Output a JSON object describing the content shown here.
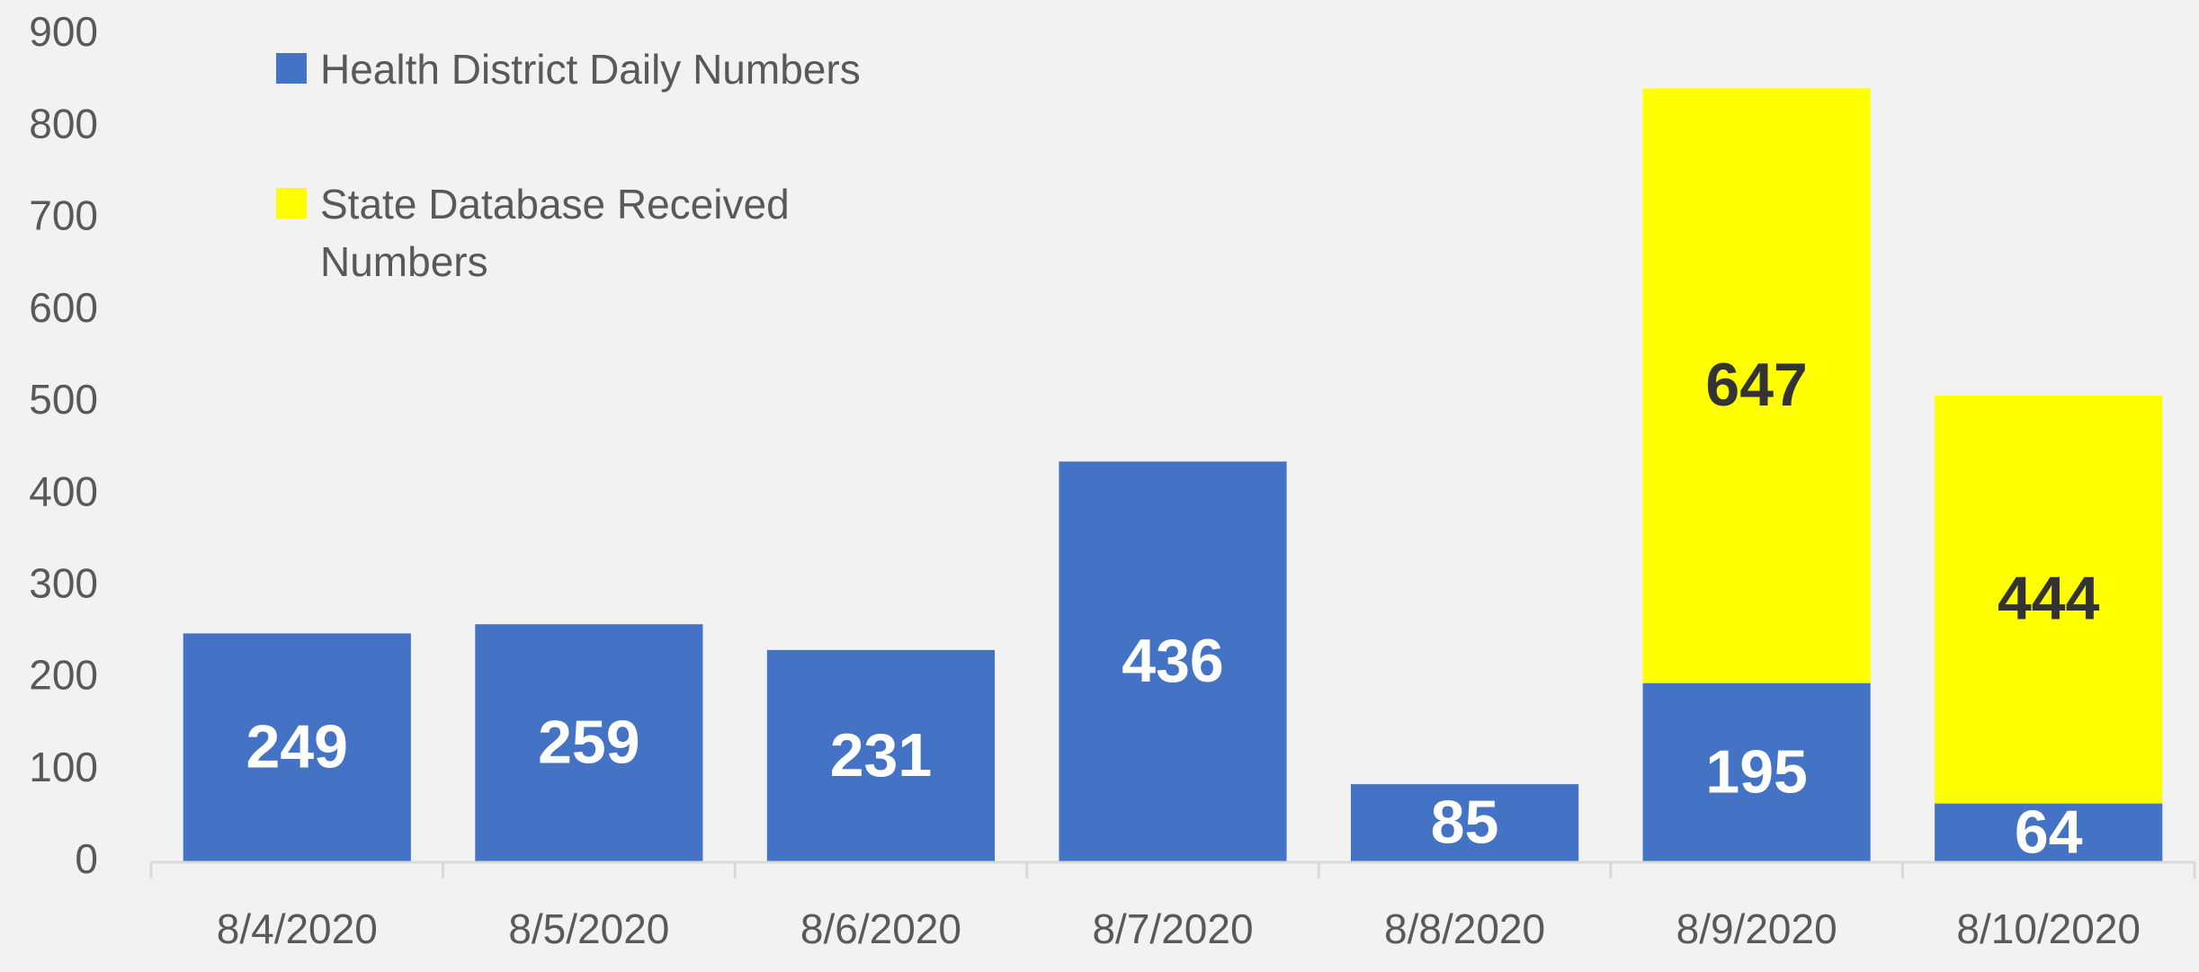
{
  "chart_data": {
    "type": "stacked_bar",
    "categories": [
      "8/4/2020",
      "8/5/2020",
      "8/6/2020",
      "8/7/2020",
      "8/8/2020",
      "8/9/2020",
      "8/10/2020"
    ],
    "series": [
      {
        "name": "Health District Daily Numbers",
        "color": "#4472c4",
        "label_color": "#ffffff",
        "values": [
          249,
          259,
          231,
          436,
          85,
          195,
          64
        ]
      },
      {
        "name": "State Database Received Numbers",
        "color": "#ffff00",
        "label_color": "#333333",
        "values": [
          null,
          null,
          null,
          null,
          null,
          647,
          444
        ]
      }
    ],
    "ylim": [
      0,
      900
    ],
    "yticks": [
      0,
      100,
      200,
      300,
      400,
      500,
      600,
      700,
      800,
      900
    ],
    "grid": false,
    "legend": "top-left"
  }
}
